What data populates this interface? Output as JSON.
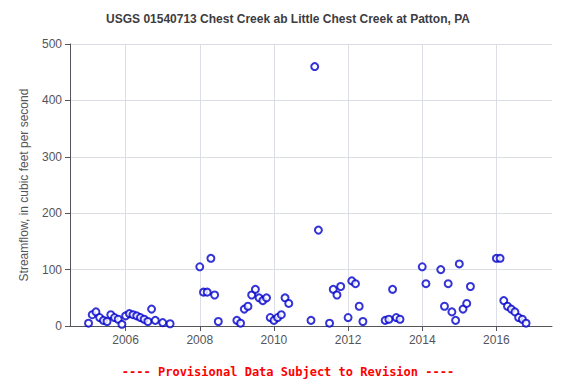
{
  "chart_data": {
    "type": "scatter",
    "title": "USGS 01540713 Chest Creek ab Little Chest Creek at Patton, PA",
    "ylabel": "Streamflow, in cubic feet per second",
    "annotations": [
      {
        "text": "---- Provisional Data Subject to Revision ----",
        "color": "#ff0000"
      }
    ],
    "color": "#0000cc",
    "marker": "circle",
    "grid": true,
    "xlim": [
      2004.5,
      2017.5
    ],
    "xticks": [
      2006,
      2008,
      2010,
      2012,
      2014,
      2016
    ],
    "ylim": [
      0,
      500
    ],
    "yticks": [
      0,
      100,
      200,
      300,
      400,
      500
    ],
    "x": [
      2005.0,
      2005.1,
      2005.2,
      2005.3,
      2005.4,
      2005.5,
      2005.6,
      2005.7,
      2005.8,
      2005.9,
      2006.0,
      2006.1,
      2006.2,
      2006.3,
      2006.4,
      2006.5,
      2006.6,
      2006.7,
      2006.8,
      2007.0,
      2007.2,
      2008.0,
      2008.1,
      2008.2,
      2008.3,
      2008.4,
      2008.5,
      2009.0,
      2009.1,
      2009.2,
      2009.3,
      2009.4,
      2009.5,
      2009.6,
      2009.7,
      2009.8,
      2009.9,
      2010.0,
      2010.1,
      2010.2,
      2010.3,
      2010.4,
      2011.0,
      2011.1,
      2011.2,
      2011.5,
      2011.6,
      2011.7,
      2011.8,
      2012.0,
      2012.1,
      2012.2,
      2012.3,
      2012.4,
      2013.0,
      2013.1,
      2013.2,
      2013.3,
      2013.4,
      2014.0,
      2014.1,
      2014.5,
      2014.6,
      2014.7,
      2014.8,
      2014.9,
      2015.0,
      2015.1,
      2015.2,
      2015.3,
      2016.0,
      2016.1,
      2016.2,
      2016.3,
      2016.4,
      2016.5,
      2016.6,
      2016.7,
      2016.8
    ],
    "values": [
      5,
      20,
      25,
      15,
      10,
      8,
      20,
      15,
      12,
      3,
      18,
      22,
      20,
      18,
      15,
      12,
      8,
      30,
      10,
      6,
      4,
      105,
      60,
      60,
      120,
      55,
      8,
      10,
      5,
      30,
      35,
      55,
      65,
      50,
      45,
      50,
      15,
      10,
      15,
      20,
      50,
      40,
      10,
      460,
      170,
      5,
      65,
      55,
      70,
      15,
      80,
      75,
      35,
      8,
      10,
      12,
      65,
      15,
      12,
      105,
      75,
      100,
      35,
      75,
      25,
      10,
      110,
      30,
      40,
      70,
      120,
      120,
      45,
      35,
      30,
      25,
      15,
      12,
      5
    ]
  }
}
